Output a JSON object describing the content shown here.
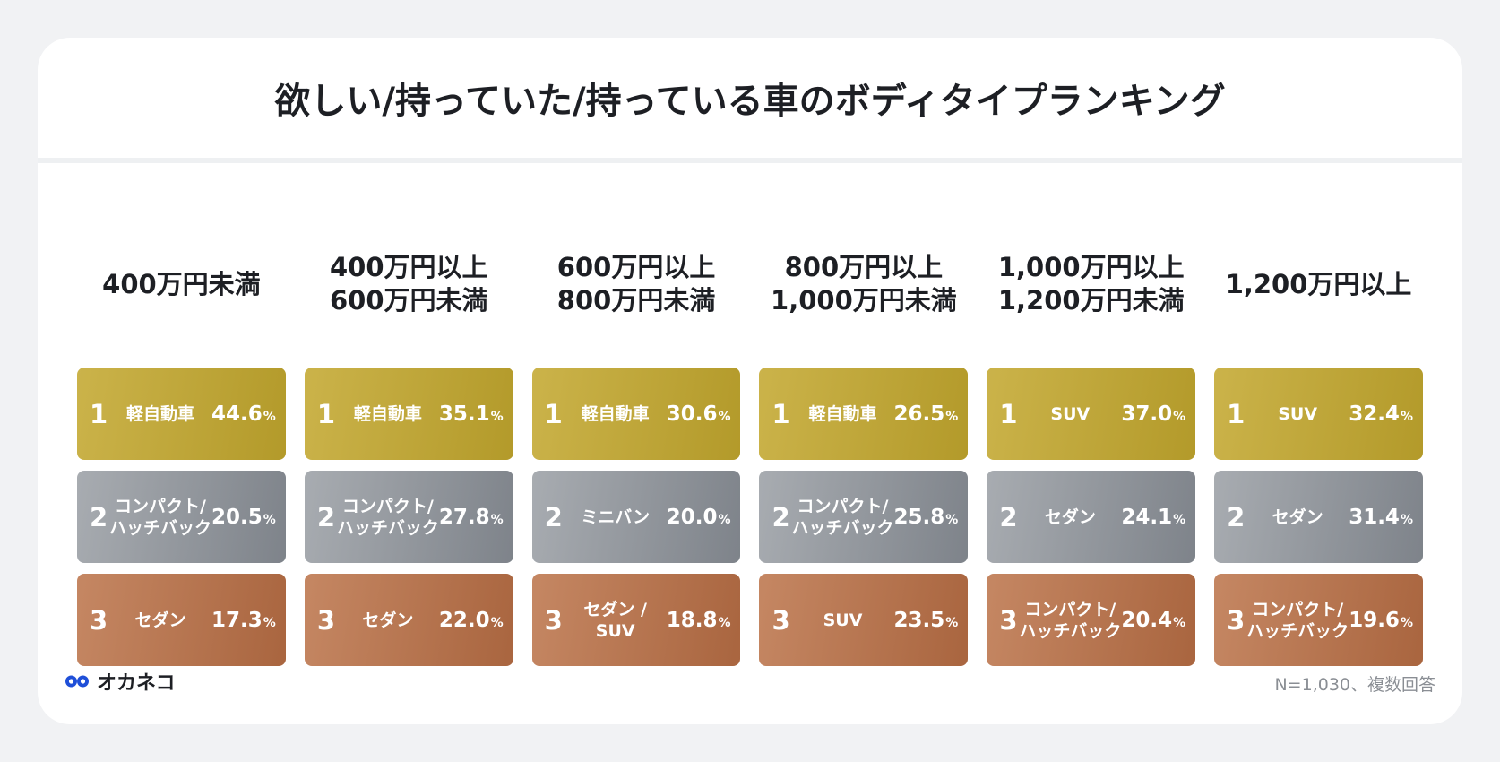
{
  "title": "欲しい/持っていた/持っている車のボディタイプランキング",
  "chart_data": {
    "type": "table",
    "title": "欲しい/持っていた/持っている車のボディタイプランキング",
    "groups": [
      {
        "header": [
          "400万円未満"
        ],
        "items": [
          {
            "rank": "1",
            "label": [
              "軽自動車"
            ],
            "value": "44.6",
            "unit": "%"
          },
          {
            "rank": "2",
            "label": [
              "コンパクト/",
              "ハッチバック"
            ],
            "value": "20.5",
            "unit": "%"
          },
          {
            "rank": "3",
            "label": [
              "セダン"
            ],
            "value": "17.3",
            "unit": "%"
          }
        ]
      },
      {
        "header": [
          "400万円以上",
          "600万円未満"
        ],
        "items": [
          {
            "rank": "1",
            "label": [
              "軽自動車"
            ],
            "value": "35.1",
            "unit": "%"
          },
          {
            "rank": "2",
            "label": [
              "コンパクト/",
              "ハッチバック"
            ],
            "value": "27.8",
            "unit": "%"
          },
          {
            "rank": "3",
            "label": [
              "セダン"
            ],
            "value": "22.0",
            "unit": "%"
          }
        ]
      },
      {
        "header": [
          "600万円以上",
          "800万円未満"
        ],
        "items": [
          {
            "rank": "1",
            "label": [
              "軽自動車"
            ],
            "value": "30.6",
            "unit": "%"
          },
          {
            "rank": "2",
            "label": [
              "ミニバン"
            ],
            "value": "20.0",
            "unit": "%"
          },
          {
            "rank": "3",
            "label": [
              "セダン /",
              "SUV"
            ],
            "value": "18.8",
            "unit": "%"
          }
        ]
      },
      {
        "header": [
          "800万円以上",
          "1,000万円未満"
        ],
        "items": [
          {
            "rank": "1",
            "label": [
              "軽自動車"
            ],
            "value": "26.5",
            "unit": "%"
          },
          {
            "rank": "2",
            "label": [
              "コンパクト/",
              "ハッチバック"
            ],
            "value": "25.8",
            "unit": "%"
          },
          {
            "rank": "3",
            "label": [
              "SUV"
            ],
            "value": "23.5",
            "unit": "%"
          }
        ]
      },
      {
        "header": [
          "1,000万円以上",
          "1,200万円未満"
        ],
        "items": [
          {
            "rank": "1",
            "label": [
              "SUV"
            ],
            "value": "37.0",
            "unit": "%"
          },
          {
            "rank": "2",
            "label": [
              "セダン"
            ],
            "value": "24.1",
            "unit": "%"
          },
          {
            "rank": "3",
            "label": [
              "コンパクト/",
              "ハッチバック"
            ],
            "value": "20.4",
            "unit": "%"
          }
        ]
      },
      {
        "header": [
          "1,200万円以上"
        ],
        "items": [
          {
            "rank": "1",
            "label": [
              "SUV"
            ],
            "value": "32.4",
            "unit": "%"
          },
          {
            "rank": "2",
            "label": [
              "セダン"
            ],
            "value": "31.4",
            "unit": "%"
          },
          {
            "rank": "3",
            "label": [
              "コンパクト/",
              "ハッチバック"
            ],
            "value": "19.6",
            "unit": "%"
          }
        ]
      }
    ]
  },
  "colors": {
    "gold": "#c0a63a",
    "silver": "#9a9ea4",
    "bronze": "#b8744f"
  },
  "footer": {
    "logo_icon": "okaneko-logo-icon",
    "logo_text": "オカネコ",
    "note": "N=1,030、複数回答"
  }
}
